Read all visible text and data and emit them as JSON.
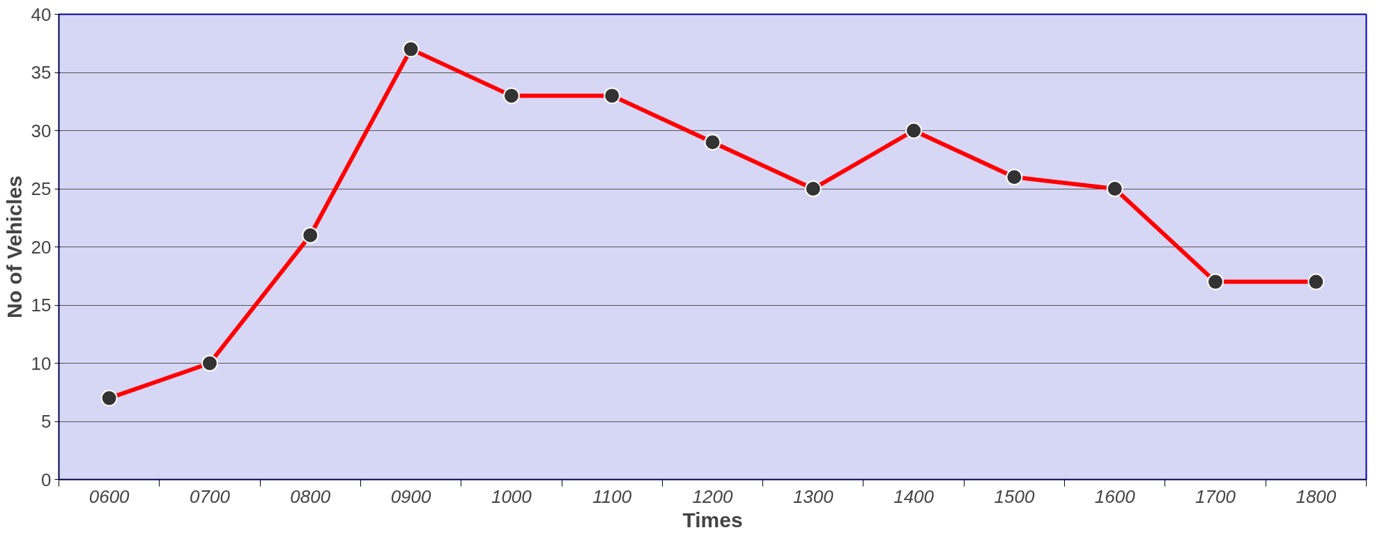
{
  "chart_data": {
    "type": "line",
    "xlabel": "Times",
    "ylabel": "No of Vehicles",
    "categories": [
      "0600",
      "0700",
      "0800",
      "0900",
      "1000",
      "1100",
      "1200",
      "1300",
      "1400",
      "1500",
      "1600",
      "1700",
      "1800"
    ],
    "series": [
      {
        "color": "#ff0000",
        "values": [
          7,
          10,
          21,
          37,
          33,
          33,
          29,
          25,
          30,
          26,
          25,
          17,
          17
        ]
      }
    ],
    "ylim": [
      0,
      40
    ],
    "yticks": [
      0,
      5,
      10,
      15,
      20,
      25,
      30,
      35,
      40
    ],
    "grid": "y",
    "marker": "circle",
    "line_style": "solid"
  }
}
